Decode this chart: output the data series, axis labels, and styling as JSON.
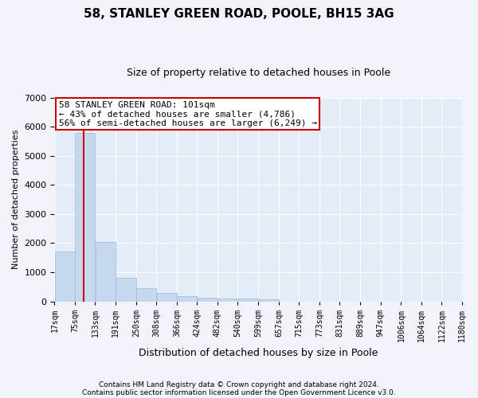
{
  "title1": "58, STANLEY GREEN ROAD, POOLE, BH15 3AG",
  "title2": "Size of property relative to detached houses in Poole",
  "xlabel": "Distribution of detached houses by size in Poole",
  "ylabel": "Number of detached properties",
  "footer1": "Contains HM Land Registry data © Crown copyright and database right 2024.",
  "footer2": "Contains public sector information licensed under the Open Government Licence v3.0.",
  "annotation_line1": "58 STANLEY GREEN ROAD: 101sqm",
  "annotation_line2": "← 43% of detached houses are smaller (4,786)",
  "annotation_line3": "56% of semi-detached houses are larger (6,249) →",
  "bar_edges": [
    17,
    75,
    133,
    191,
    250,
    308,
    366,
    424,
    482,
    540,
    599,
    657,
    715,
    773,
    831,
    889,
    947,
    1006,
    1064,
    1122,
    1180
  ],
  "bar_heights": [
    1700,
    5800,
    2050,
    820,
    440,
    290,
    190,
    130,
    100,
    85,
    65,
    0,
    0,
    0,
    0,
    0,
    0,
    0,
    0,
    0
  ],
  "bar_color": "#c5d8ee",
  "bar_edgecolor": "#9ab8d8",
  "redline_color": "#cc0000",
  "redline_x": 101,
  "ylim": [
    0,
    7000
  ],
  "xlim": [
    17,
    1180
  ],
  "bg_color": "#f0f4fa",
  "plot_bg_color": "#e4edf7",
  "grid_color": "#ffffff",
  "annotation_box_facecolor": "#ffffff",
  "annotation_border_color": "#cc0000",
  "title1_fontsize": 11,
  "title2_fontsize": 9,
  "ylabel_fontsize": 8,
  "xlabel_fontsize": 9,
  "tick_fontsize": 7,
  "annotation_fontsize": 8,
  "footer_fontsize": 6.5
}
